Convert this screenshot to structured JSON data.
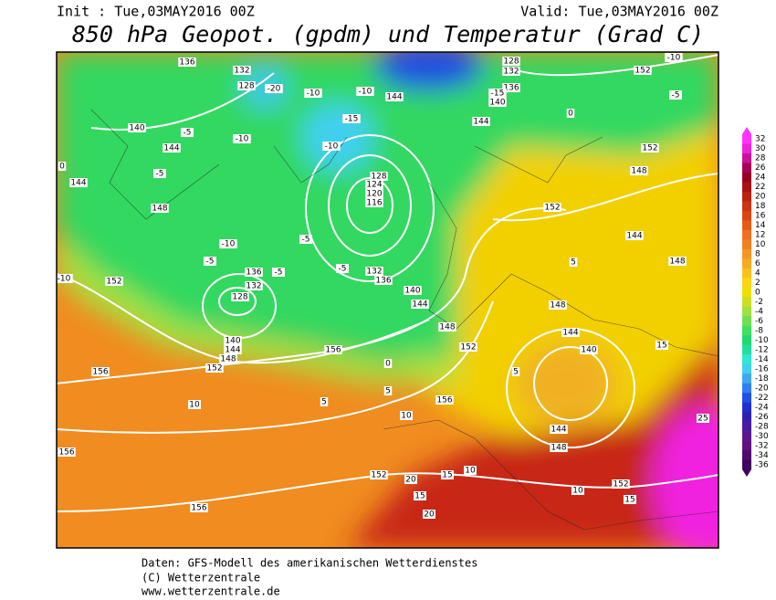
{
  "header": {
    "init": "Init : Tue,03MAY2016 00Z",
    "valid": "Valid: Tue,03MAY2016 00Z",
    "title": "850 hPa Geopot. (gpdm) und Temperatur (Grad C)"
  },
  "map": {
    "contour_labels": [
      "136",
      "132",
      "128",
      "140",
      "144",
      "148",
      "152",
      "156",
      "156",
      "156",
      "152",
      "156",
      "152",
      "148",
      "144",
      "140",
      "136",
      "132",
      "128",
      "124",
      "120",
      "116",
      "136",
      "132",
      "128",
      "140",
      "144",
      "148",
      "152",
      "156",
      "144",
      "144",
      "140",
      "136",
      "132",
      "128",
      "152",
      "152",
      "148",
      "152",
      "144",
      "148",
      "148",
      "144",
      "140",
      "144",
      "148",
      "152",
      "-10",
      "-5",
      "-5",
      "-5",
      "-5",
      "-5",
      "-10",
      "-15",
      "-10",
      "-10",
      "5",
      "5",
      "0",
      "10",
      "10",
      "15",
      "20",
      "20",
      "10",
      "15",
      "15",
      "25",
      "10",
      "15",
      "5",
      "5",
      "0",
      "-5",
      "-10",
      "0",
      "144",
      "-5",
      "-10",
      "-20",
      "-15",
      "-10"
    ]
  },
  "colorbar": {
    "levels": [
      32,
      30,
      28,
      26,
      24,
      22,
      20,
      18,
      16,
      14,
      12,
      10,
      8,
      6,
      4,
      2,
      0,
      -2,
      -4,
      -6,
      -8,
      -10,
      -12,
      -14,
      -16,
      -18,
      -20,
      -22,
      -24,
      -26,
      -28,
      -30,
      -32,
      -34,
      -36
    ],
    "colors": [
      "#ff33ff",
      "#ee22dd",
      "#cc1199",
      "#aa0055",
      "#990022",
      "#aa1111",
      "#bb2211",
      "#cc3311",
      "#dd4411",
      "#e65a14",
      "#ee7020",
      "#f08020",
      "#f59525",
      "#f8aa20",
      "#fbc01a",
      "#fdd510",
      "#f0e000",
      "#c8e020",
      "#a0e040",
      "#70e050",
      "#40e060",
      "#20d870",
      "#20e0a0",
      "#30e8d0",
      "#40d0f0",
      "#40a8f0",
      "#3080f0",
      "#2050e8",
      "#2030d0",
      "#3020b0",
      "#4a1aa0",
      "#5a1890",
      "#601080",
      "#500870",
      "#400060"
    ]
  },
  "footer": {
    "lines": [
      "Daten: GFS-Modell des amerikanischen Wetterdienstes",
      "(C) Wetterzentrale",
      "www.wetterzentrale.de"
    ]
  }
}
